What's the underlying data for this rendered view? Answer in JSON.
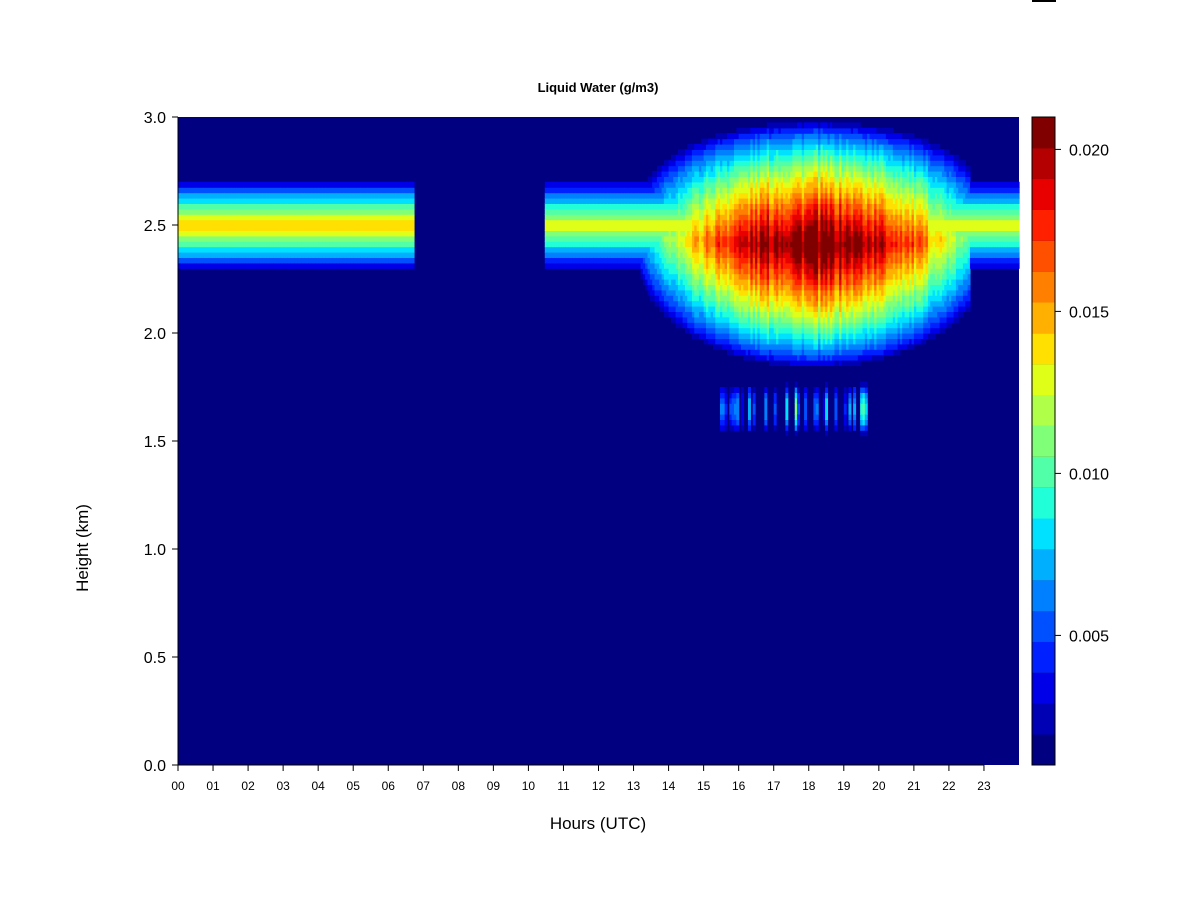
{
  "chart_data": {
    "type": "heatmap",
    "title": "Liquid Water (g/m3)",
    "xlabel": "Hours (UTC)",
    "ylabel": "Height (km)",
    "xlim": [
      0,
      24
    ],
    "ylim": [
      0,
      3
    ],
    "x_ticks": [
      0,
      1,
      2,
      3,
      4,
      5,
      6,
      7,
      8,
      9,
      10,
      11,
      12,
      13,
      14,
      15,
      16,
      17,
      18,
      19,
      20,
      21,
      22,
      23
    ],
    "x_tick_labels": [
      "00",
      "01",
      "02",
      "03",
      "04",
      "05",
      "06",
      "07",
      "08",
      "09",
      "10",
      "11",
      "12",
      "13",
      "14",
      "15",
      "16",
      "17",
      "18",
      "19",
      "20",
      "21",
      "22",
      "23"
    ],
    "y_ticks": [
      0,
      0.5,
      1,
      1.5,
      2,
      2.5,
      3
    ],
    "y_tick_labels": [
      "0.0",
      "0.5",
      "1.0",
      "1.5",
      "2.0",
      "2.5",
      "3.0"
    ],
    "colorbar": {
      "range": [
        0.001,
        0.021
      ],
      "levels": 20,
      "ticks": [
        0.005,
        0.01,
        0.015,
        0.02
      ],
      "tick_labels": [
        "0.005",
        "0.010",
        "0.015",
        "0.020"
      ],
      "colors": [
        "#000080",
        "#0000B4",
        "#0000E8",
        "#0020FF",
        "#0050FF",
        "#0080FF",
        "#00B0FF",
        "#00E0FF",
        "#20FFD8",
        "#50FFA8",
        "#80FF78",
        "#B0FF48",
        "#E0FF18",
        "#FFE000",
        "#FFB000",
        "#FF8000",
        "#FF5000",
        "#FF2000",
        "#E80000",
        "#B40000",
        "#800000"
      ]
    },
    "layers": [
      {
        "name": "upper cloud layer",
        "x_start": 0.0,
        "x_end": 6.7,
        "center_km": 2.5,
        "half_thickness_km": 0.22,
        "peak_g_m3": 0.0135
      },
      {
        "name": "upper cloud layer",
        "x_start": 10.5,
        "x_end": 24.0,
        "center_km": 2.5,
        "half_thickness_km": 0.22,
        "peak_g_m3": 0.012
      },
      {
        "name": "thick cloud core",
        "x_start": 12.7,
        "x_end": 22.6,
        "center_km": 2.45,
        "half_thickness_km": 0.42,
        "peak_g_m3": 0.0205
      },
      {
        "name": "lower broken cloud",
        "x_start": 15.35,
        "x_end": 19.75,
        "center_km": 1.65,
        "half_thickness_km": 0.13,
        "peak_g_m3": 0.008
      }
    ],
    "grid": false,
    "legend": "colorbar-right"
  }
}
